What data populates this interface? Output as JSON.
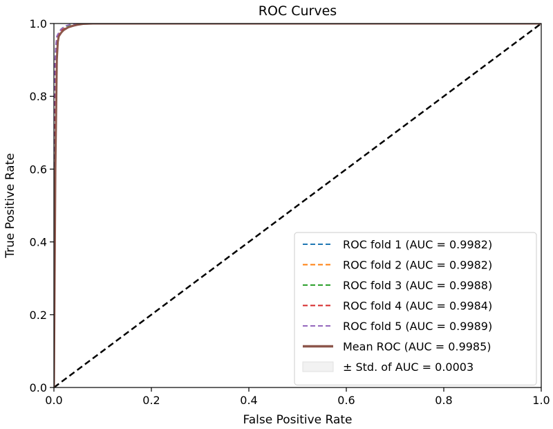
{
  "chart_data": {
    "type": "line",
    "title": "ROC Curves",
    "xlabel": "False Positive Rate",
    "ylabel": "True Positive Rate",
    "xlim": [
      0.0,
      1.0
    ],
    "ylim": [
      0.0,
      1.0
    ],
    "xticks": [
      "0.0",
      "0.2",
      "0.4",
      "0.6",
      "0.8",
      "1.0"
    ],
    "yticks": [
      "0.0",
      "0.2",
      "0.4",
      "0.6",
      "0.8",
      "1.0"
    ],
    "grid": false,
    "legend_position": "lower-right",
    "series": [
      {
        "name": "ROC fold 1 (AUC = 0.9982)",
        "color": "#1f77b4",
        "style": "dashed",
        "x": [
          0.0,
          0.0,
          0.002,
          0.004,
          0.006,
          0.008,
          0.01,
          0.015,
          0.02,
          0.03,
          0.04,
          0.05,
          0.06,
          1.0
        ],
        "y": [
          0.0,
          0.55,
          0.8,
          0.9,
          0.94,
          0.96,
          0.97,
          0.98,
          0.985,
          0.99,
          0.995,
          0.998,
          1.0,
          1.0
        ]
      },
      {
        "name": "ROC fold 2 (AUC = 0.9982)",
        "color": "#ff7f0e",
        "style": "dashed",
        "x": [
          0.0,
          0.0,
          0.002,
          0.004,
          0.006,
          0.008,
          0.012,
          0.02,
          0.03,
          0.045,
          0.06,
          1.0
        ],
        "y": [
          0.0,
          0.6,
          0.82,
          0.91,
          0.95,
          0.965,
          0.975,
          0.985,
          0.99,
          0.996,
          1.0,
          1.0
        ]
      },
      {
        "name": "ROC fold 3 (AUC = 0.9988)",
        "color": "#2ca02c",
        "style": "dashed",
        "x": [
          0.0,
          0.0,
          0.002,
          0.004,
          0.006,
          0.01,
          0.015,
          0.02,
          0.03,
          0.045,
          1.0
        ],
        "y": [
          0.0,
          0.7,
          0.88,
          0.94,
          0.96,
          0.975,
          0.985,
          0.99,
          0.995,
          1.0,
          1.0
        ]
      },
      {
        "name": "ROC fold 4 (AUC = 0.9984)",
        "color": "#d62728",
        "style": "dashed",
        "x": [
          0.0,
          0.0,
          0.002,
          0.004,
          0.006,
          0.01,
          0.015,
          0.02,
          0.03,
          0.04,
          0.055,
          1.0
        ],
        "y": [
          0.0,
          0.62,
          0.84,
          0.92,
          0.95,
          0.97,
          0.98,
          0.985,
          0.99,
          0.996,
          1.0,
          1.0
        ]
      },
      {
        "name": "ROC fold 5 (AUC = 0.9989)",
        "color": "#9467bd",
        "style": "dashed",
        "x": [
          0.0,
          0.0,
          0.002,
          0.004,
          0.006,
          0.01,
          0.015,
          0.02,
          0.025,
          0.035,
          0.05,
          1.0
        ],
        "y": [
          0.0,
          0.72,
          0.89,
          0.94,
          0.965,
          0.975,
          0.985,
          0.99,
          0.994,
          0.998,
          1.0,
          1.0
        ]
      },
      {
        "name": "Mean ROC (AUC = 0.9985)",
        "color": "#8c564b",
        "style": "solid",
        "x": [
          0.0,
          0.003,
          0.006,
          0.008,
          0.01,
          0.015,
          0.02,
          0.03,
          0.04,
          0.05,
          0.06,
          0.08,
          1.0
        ],
        "y": [
          0.0,
          0.6,
          0.9,
          0.95,
          0.965,
          0.975,
          0.982,
          0.99,
          0.994,
          0.997,
          0.999,
          1.0,
          1.0
        ]
      }
    ],
    "reference_line": {
      "x": [
        0.0,
        1.0
      ],
      "y": [
        0.0,
        1.0
      ],
      "color": "#000000",
      "style": "dashed"
    },
    "std_band": {
      "name": "± Std. of AUC =  0.0003",
      "color": "#d3d3d3"
    }
  }
}
